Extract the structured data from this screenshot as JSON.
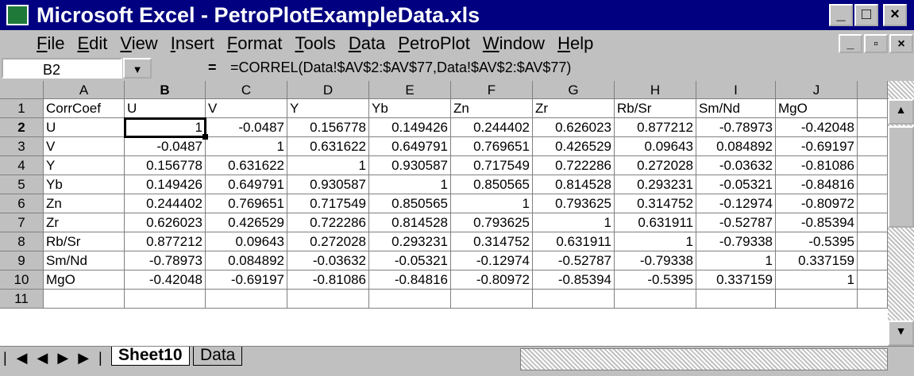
{
  "title_bar": {
    "title": "Microsoft Excel - PetroPlotExampleData.xls"
  },
  "menu": {
    "items": [
      "File",
      "Edit",
      "View",
      "Insert",
      "Format",
      "Tools",
      "Data",
      "PetroPlot",
      "Window",
      "Help"
    ]
  },
  "formula_bar": {
    "name_box": "B2",
    "equals": "=",
    "formula": "=CORREL(Data!$AV$2:$AV$77,Data!$AV$2:$AV$77)"
  },
  "table": {
    "columns": [
      "A",
      "B",
      "C",
      "D",
      "E",
      "F",
      "G",
      "H",
      "I",
      "J"
    ],
    "row_numbers": [
      "1",
      "2",
      "3",
      "4",
      "5",
      "6",
      "7",
      "8",
      "9",
      "10",
      "11"
    ],
    "rows": [
      [
        "CorrCoef",
        "U",
        "V",
        "Y",
        "Yb",
        "Zn",
        "Zr",
        "Rb/Sr",
        "Sm/Nd",
        "MgO"
      ],
      [
        "U",
        "1",
        "-0.0487",
        "0.156778",
        "0.149426",
        "0.244402",
        "0.626023",
        "0.877212",
        "-0.78973",
        "-0.42048"
      ],
      [
        "V",
        "-0.0487",
        "1",
        "0.631622",
        "0.649791",
        "0.769651",
        "0.426529",
        "0.09643",
        "0.084892",
        "-0.69197"
      ],
      [
        "Y",
        "0.156778",
        "0.631622",
        "1",
        "0.930587",
        "0.717549",
        "0.722286",
        "0.272028",
        "-0.03632",
        "-0.81086"
      ],
      [
        "Yb",
        "0.149426",
        "0.649791",
        "0.930587",
        "1",
        "0.850565",
        "0.814528",
        "0.293231",
        "-0.05321",
        "-0.84816"
      ],
      [
        "Zn",
        "0.244402",
        "0.769651",
        "0.717549",
        "0.850565",
        "1",
        "0.793625",
        "0.314752",
        "-0.12974",
        "-0.80972"
      ],
      [
        "Zr",
        "0.626023",
        "0.426529",
        "0.722286",
        "0.814528",
        "0.793625",
        "1",
        "0.631911",
        "-0.52787",
        "-0.85394"
      ],
      [
        "Rb/Sr",
        "0.877212",
        "0.09643",
        "0.272028",
        "0.293231",
        "0.314752",
        "0.631911",
        "1",
        "-0.79338",
        "-0.5395"
      ],
      [
        "Sm/Nd",
        "-0.78973",
        "0.084892",
        "-0.03632",
        "-0.05321",
        "-0.12974",
        "-0.52787",
        "-0.79338",
        "1",
        "0.337159"
      ],
      [
        "MgO",
        "-0.42048",
        "-0.69197",
        "-0.81086",
        "-0.84816",
        "-0.80972",
        "-0.85394",
        "-0.5395",
        "0.337159",
        "1"
      ]
    ]
  },
  "sheet_tabs": [
    "Sheet10",
    "Data"
  ]
}
